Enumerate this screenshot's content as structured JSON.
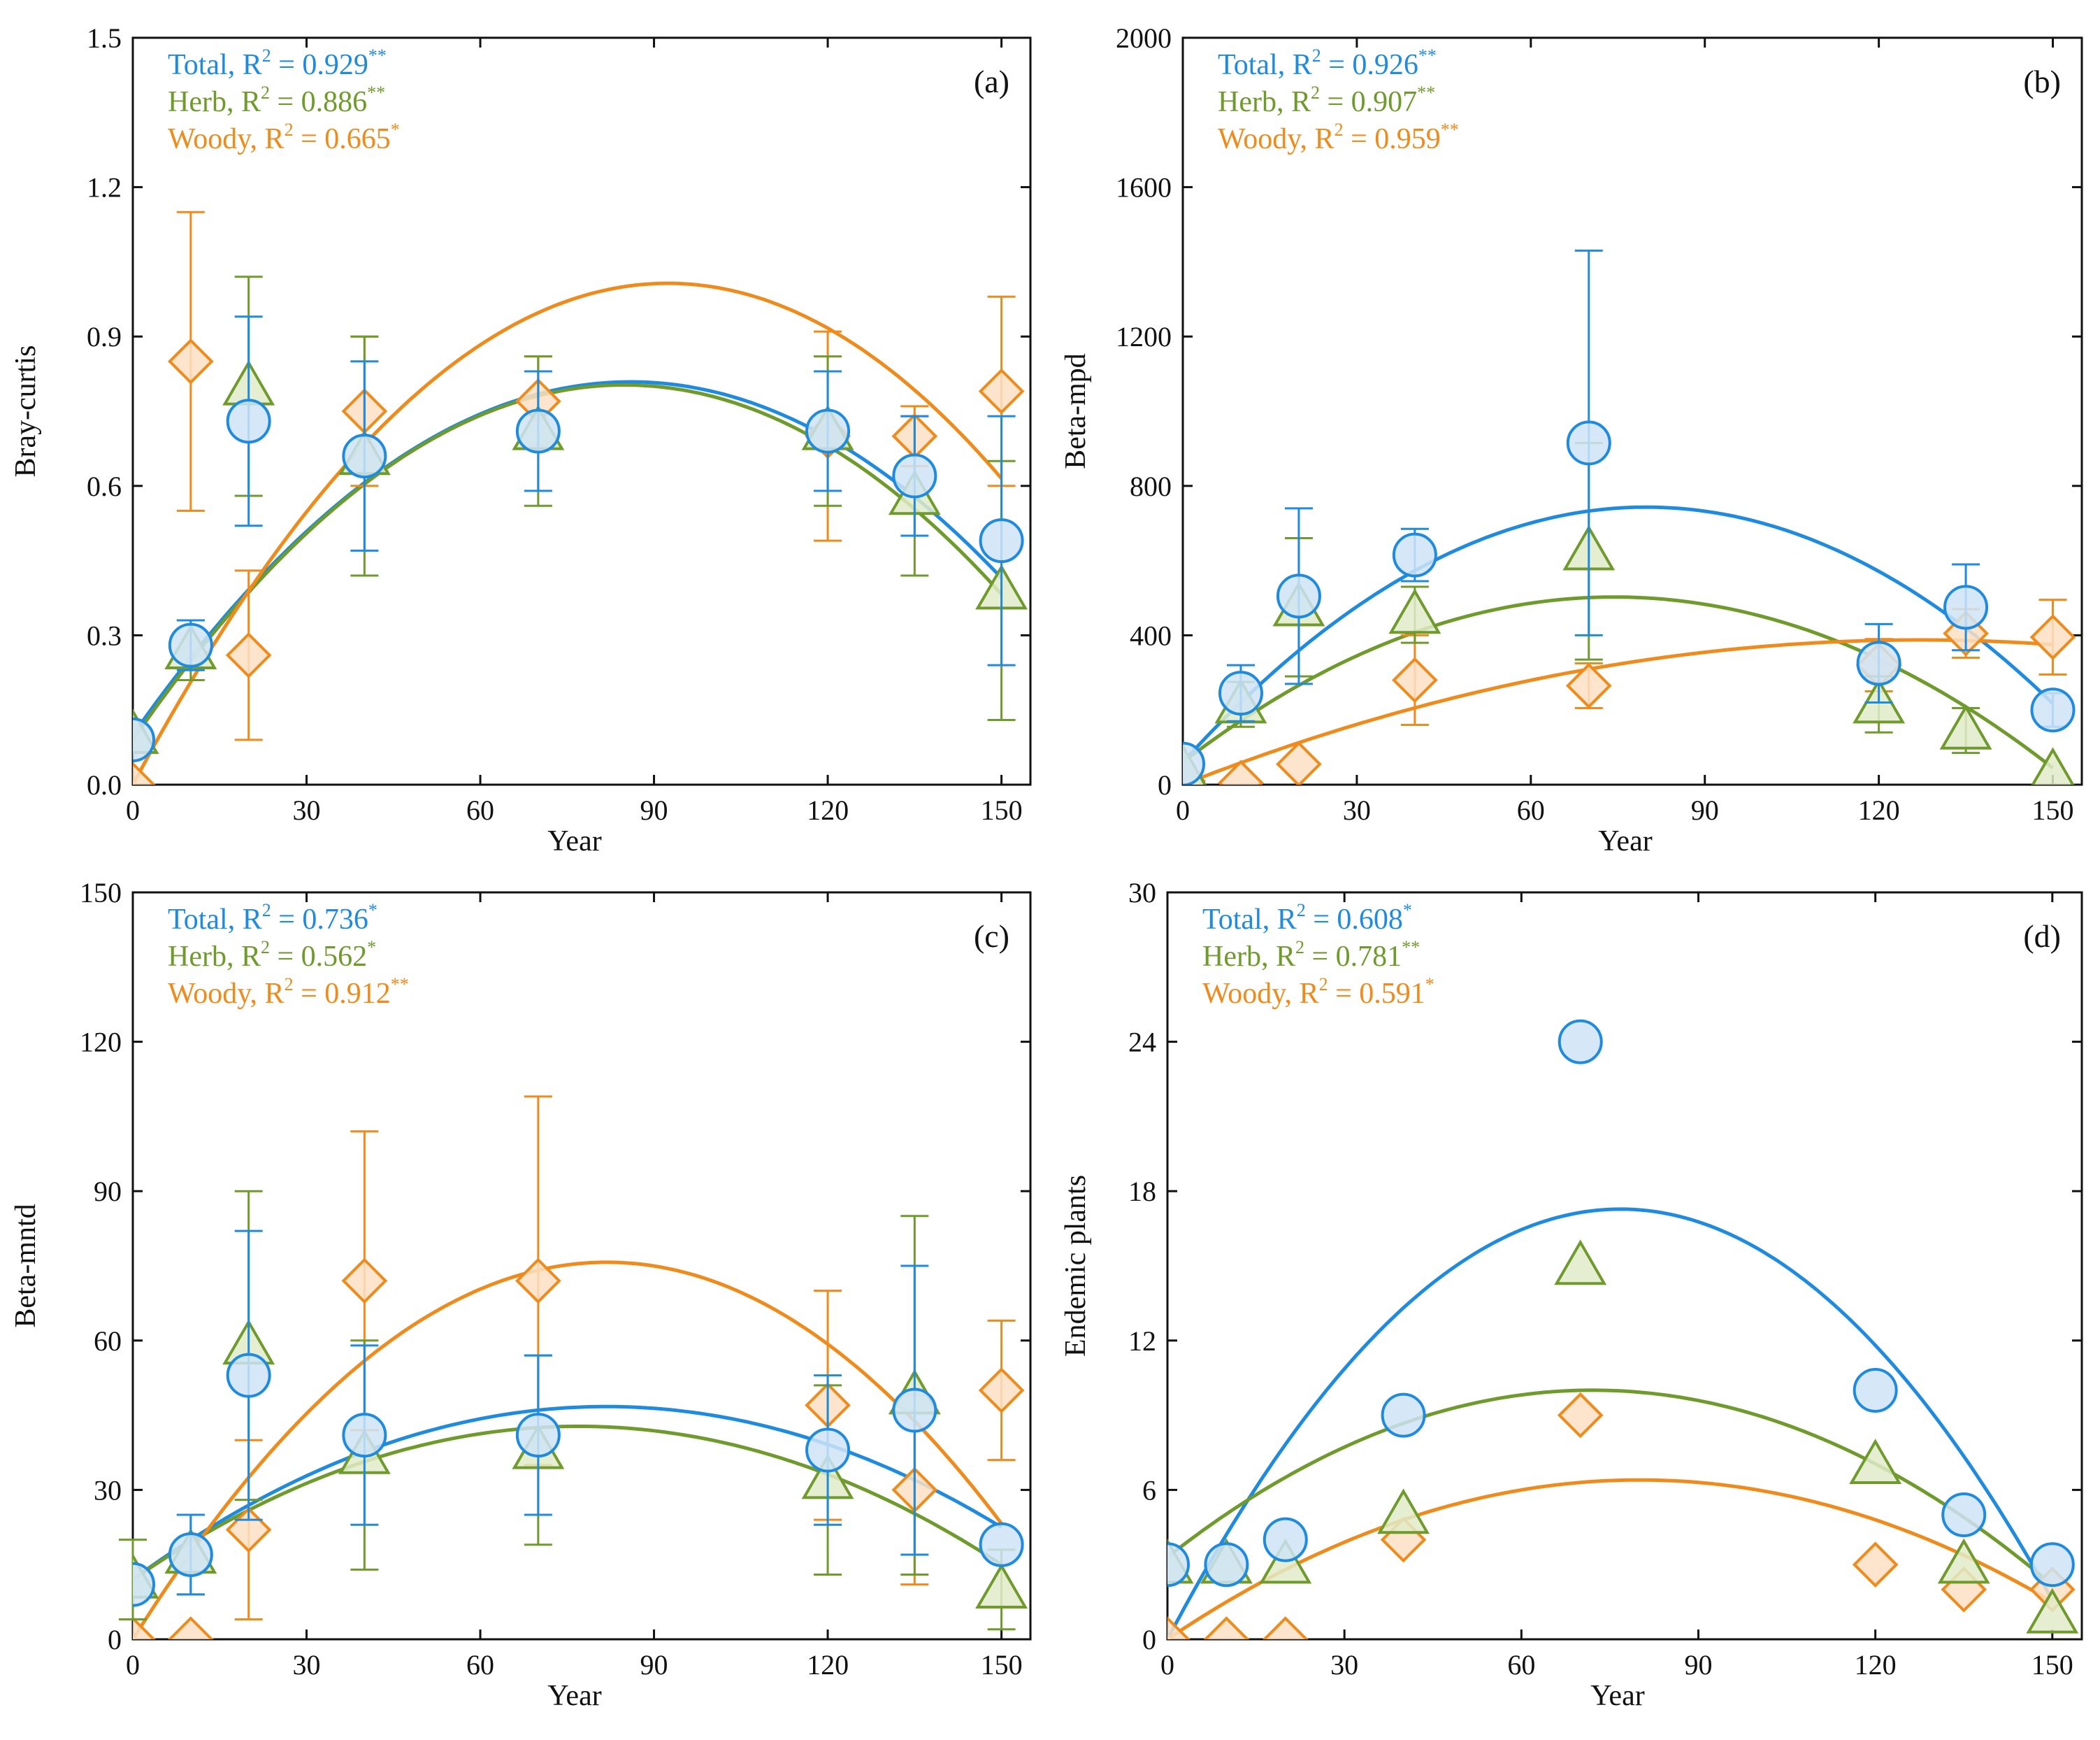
{
  "colors": {
    "total": "#1f8be0",
    "herb": "#6f9a2c",
    "woody": "#f08a1a",
    "total_fill": "#cfe4f6",
    "herb_fill": "#e1ebc8",
    "woody_fill": "#fde0c4"
  },
  "chart_data": [
    {
      "type": "scatter",
      "tag": "(a)",
      "xlabel": "Year",
      "ylabel": "Bray-curtis",
      "xlim": [
        0,
        155
      ],
      "ylim": [
        0,
        1.5
      ],
      "xticks": [
        "0",
        "30",
        "60",
        "90",
        "120",
        "150"
      ],
      "yticks": [
        "0.0",
        "0.3",
        "0.6",
        "0.9",
        "1.2",
        "1.5"
      ],
      "ytick_values": [
        0,
        0.3,
        0.6,
        0.9,
        1.2,
        1.5
      ],
      "legend": [
        {
          "key": "total",
          "name": "Total",
          "r2": "R",
          "sq": "2",
          "eq": " = 0.929",
          "sig": "**"
        },
        {
          "key": "herb",
          "name": "Herb",
          "r2": "R",
          "sq": "2",
          "eq": " = 0.886",
          "sig": "**"
        },
        {
          "key": "woody",
          "name": "Woody",
          "r2": "R",
          "sq": "2",
          "eq": " = 0.665",
          "sig": "*"
        }
      ],
      "series": [
        {
          "name": "Total",
          "marker": "circle",
          "x": [
            0,
            10,
            20,
            40,
            70,
            120,
            135,
            150
          ],
          "y": [
            0.09,
            0.28,
            0.73,
            0.66,
            0.71,
            0.71,
            0.62,
            0.49
          ],
          "err": [
            null,
            0.05,
            0.21,
            0.19,
            0.12,
            0.12,
            0.12,
            0.25
          ],
          "fit": [
            0.1,
            0.0165,
            -9.6e-05
          ]
        },
        {
          "name": "Herb",
          "marker": "triangle",
          "x": [
            0,
            10,
            20,
            40,
            70,
            120,
            135,
            150
          ],
          "y": [
            0.1,
            0.27,
            0.8,
            0.66,
            0.71,
            0.71,
            0.58,
            0.39
          ],
          "err": [
            null,
            0.06,
            0.22,
            0.24,
            0.15,
            0.15,
            0.16,
            0.26
          ],
          "fit": [
            0.09,
            0.0168,
            -9.9e-05
          ]
        },
        {
          "name": "Woody",
          "marker": "diamond",
          "x": [
            0,
            10,
            20,
            40,
            70,
            120,
            135,
            150
          ],
          "y": [
            0.0,
            0.85,
            0.26,
            0.75,
            0.77,
            0.7,
            0.7,
            0.79
          ],
          "err": [
            null,
            0.3,
            0.17,
            0.15,
            0.09,
            0.21,
            0.06,
            0.19
          ],
          "fit": [
            0.0,
            0.0218,
            -0.000118
          ]
        }
      ]
    },
    {
      "type": "scatter",
      "tag": "(b)",
      "xlabel": "Year",
      "ylabel": "Beta-mpd",
      "xlim": [
        0,
        155
      ],
      "ylim": [
        0,
        2000
      ],
      "xticks": [
        "0",
        "30",
        "60",
        "90",
        "120",
        "150"
      ],
      "yticks": [
        "0",
        "400",
        "800",
        "1200",
        "1600",
        "2000"
      ],
      "ytick_values": [
        0,
        400,
        800,
        1200,
        1600,
        2000
      ],
      "legend": [
        {
          "key": "total",
          "name": "Total",
          "r2": "R",
          "sq": "2",
          "eq": " = 0.926",
          "sig": "**"
        },
        {
          "key": "herb",
          "name": "Herb",
          "r2": "R",
          "sq": "2",
          "eq": " = 0.907",
          "sig": "**"
        },
        {
          "key": "woody",
          "name": "Woody",
          "r2": "R",
          "sq": "2",
          "eq": " = 0.959",
          "sig": "**"
        }
      ],
      "series": [
        {
          "name": "Total",
          "marker": "circle",
          "x": [
            0,
            10,
            20,
            40,
            70,
            120,
            135,
            150
          ],
          "y": [
            55,
            245,
            505,
            615,
            915,
            325,
            475,
            200
          ],
          "err": [
            null,
            75,
            235,
            70,
            515,
            105,
            115,
            45
          ],
          "fit": [
            60,
            17.1,
            -0.107
          ]
        },
        {
          "name": "Herb",
          "marker": "triangle",
          "x": [
            0,
            10,
            20,
            40,
            70,
            120,
            135,
            150
          ],
          "y": [
            40,
            215,
            475,
            455,
            625,
            215,
            145,
            30
          ],
          "err": [
            null,
            60,
            185,
            75,
            290,
            75,
            60,
            null
          ],
          "fit": [
            60,
            11.9,
            -0.08
          ]
        },
        {
          "name": "Woody",
          "marker": "diamond",
          "x": [
            0,
            10,
            20,
            40,
            70,
            120,
            135,
            150
          ],
          "y": [
            10,
            5,
            55,
            280,
            265,
            320,
            405,
            395
          ],
          "err": [
            null,
            null,
            null,
            120,
            60,
            70,
            65,
            100
          ],
          "fit": [
            0,
            6.1,
            -0.024
          ]
        }
      ]
    },
    {
      "type": "scatter",
      "tag": "(c)",
      "xlabel": "Year",
      "ylabel": "Beta-mntd",
      "xlim": [
        0,
        155
      ],
      "ylim": [
        0,
        150
      ],
      "xticks": [
        "0",
        "30",
        "60",
        "90",
        "120",
        "150"
      ],
      "yticks": [
        "0",
        "30",
        "60",
        "90",
        "120",
        "150"
      ],
      "ytick_values": [
        0,
        30,
        60,
        90,
        120,
        150
      ],
      "legend": [
        {
          "key": "total",
          "name": "Total",
          "r2": "R",
          "sq": "2",
          "eq": " = 0.736",
          "sig": "*"
        },
        {
          "key": "herb",
          "name": "Herb",
          "r2": "R",
          "sq": "2",
          "eq": " = 0.562",
          "sig": "*"
        },
        {
          "key": "woody",
          "name": "Woody",
          "r2": "R",
          "sq": "2",
          "eq": " = 0.912",
          "sig": "**"
        }
      ],
      "series": [
        {
          "name": "Total",
          "marker": "circle",
          "x": [
            0,
            10,
            20,
            40,
            70,
            120,
            135,
            150
          ],
          "y": [
            11,
            17,
            53,
            41,
            41,
            38,
            46,
            19
          ],
          "err": [
            null,
            8,
            29,
            18,
            16,
            15,
            29,
            null
          ],
          "fit": [
            12,
            0.85,
            -0.0052
          ]
        },
        {
          "name": "Herb",
          "marker": "triangle",
          "x": [
            0,
            10,
            20,
            40,
            70,
            120,
            135,
            150
          ],
          "y": [
            12,
            17,
            59,
            37,
            38,
            32,
            49,
            10
          ],
          "err": [
            8,
            8,
            31,
            23,
            19,
            19,
            36,
            8
          ],
          "fit": [
            12,
            0.8,
            -0.0052
          ]
        },
        {
          "name": "Woody",
          "marker": "diamond",
          "x": [
            0,
            10,
            20,
            40,
            70,
            120,
            135,
            150
          ],
          "y": [
            0,
            0,
            22,
            72,
            72,
            47,
            30,
            50
          ],
          "err": [
            null,
            null,
            18,
            30,
            37,
            23,
            19,
            14
          ],
          "fit": [
            0,
            1.85,
            -0.0113
          ]
        }
      ]
    },
    {
      "type": "scatter",
      "tag": "(d)",
      "xlabel": "Year",
      "ylabel": "Endemic plants",
      "xlim": [
        0,
        155
      ],
      "ylim": [
        0,
        30
      ],
      "xticks": [
        "0",
        "30",
        "60",
        "90",
        "120",
        "150"
      ],
      "yticks": [
        "0",
        "6",
        "12",
        "18",
        "24",
        "30"
      ],
      "ytick_values": [
        0,
        6,
        12,
        18,
        24,
        30
      ],
      "legend": [
        {
          "key": "total",
          "name": "Total",
          "r2": "R",
          "sq": "2",
          "eq": " = 0.608",
          "sig": "*"
        },
        {
          "key": "herb",
          "name": "Herb",
          "r2": "R",
          "sq": "2",
          "eq": " = 0.781",
          "sig": "**"
        },
        {
          "key": "woody",
          "name": "Woody",
          "r2": "R",
          "sq": "2",
          "eq": " = 0.591",
          "sig": "*"
        }
      ],
      "series": [
        {
          "name": "Total",
          "marker": "circle",
          "x": [
            0,
            10,
            20,
            40,
            70,
            120,
            135,
            150
          ],
          "y": [
            3,
            3,
            4,
            9,
            24,
            10,
            5,
            3
          ],
          "err": [
            null,
            null,
            null,
            null,
            null,
            null,
            null,
            null
          ],
          "fit": [
            0,
            0.45,
            -0.00293
          ]
        },
        {
          "name": "Herb",
          "marker": "triangle",
          "x": [
            0,
            10,
            20,
            40,
            70,
            120,
            135,
            150
          ],
          "y": [
            3,
            3,
            3,
            5,
            15,
            7,
            3,
            1
          ],
          "err": [
            null,
            null,
            null,
            null,
            null,
            null,
            null,
            null
          ],
          "fit": [
            3.3,
            0.186,
            -0.00129
          ]
        },
        {
          "name": "Woody",
          "marker": "diamond",
          "x": [
            0,
            10,
            20,
            40,
            70,
            120,
            135,
            150
          ],
          "y": [
            0,
            0,
            0,
            4,
            9,
            3,
            2,
            2
          ],
          "err": [
            null,
            null,
            null,
            null,
            null,
            null,
            null,
            null
          ],
          "fit": [
            0,
            0.16,
            -0.001
          ]
        }
      ]
    }
  ]
}
